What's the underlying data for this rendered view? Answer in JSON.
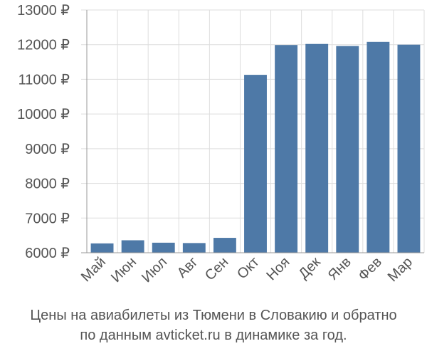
{
  "chart_data": {
    "type": "bar",
    "categories": [
      "Май",
      "Июн",
      "Июл",
      "Авг",
      "Сен",
      "Окт",
      "Ноя",
      "Дек",
      "Янв",
      "Фев",
      "Мар"
    ],
    "values": [
      6270,
      6360,
      6290,
      6280,
      6430,
      11130,
      11990,
      12020,
      11960,
      12080,
      12000
    ],
    "ylim": [
      6000,
      13000
    ],
    "y_ticks": [
      6000,
      7000,
      8000,
      9000,
      10000,
      11000,
      12000,
      13000
    ],
    "y_tick_labels": [
      "6000 ₽",
      "7000 ₽",
      "8000 ₽",
      "9000 ₽",
      "10000 ₽",
      "11000 ₽",
      "12000 ₽",
      "13000 ₽"
    ],
    "grid": true,
    "bar_color": "#4e79a7",
    "grid_color": "#dddddd",
    "axis_color": "#999999"
  },
  "caption": {
    "line1": "Цены на авиабилеты из Тюмени в Словакию и обратно",
    "line2": "по данным avticket.ru в динамике за год."
  }
}
